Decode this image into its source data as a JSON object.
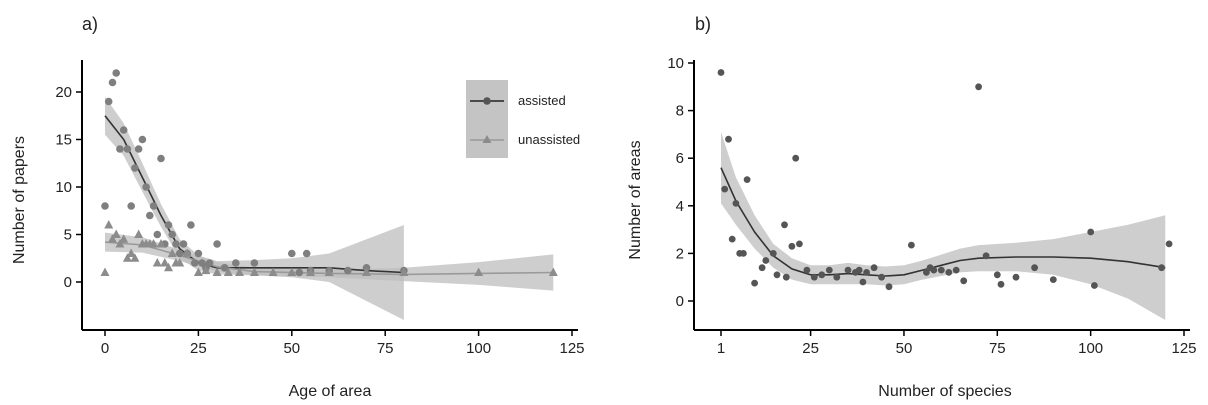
{
  "chart_data": [
    {
      "type": "scatter",
      "panel_label": "a)",
      "xlabel": "Age of area",
      "ylabel": "Number of papers",
      "xlim": [
        -3,
        125
      ],
      "ylim": [
        -5,
        23
      ],
      "xticks": [
        0,
        25,
        50,
        75,
        100,
        125
      ],
      "yticks": [
        0,
        5,
        10,
        15,
        20
      ],
      "legend_position": "top-right",
      "series": [
        {
          "name": "assisted",
          "marker": "circle",
          "color": "#7f7f7f",
          "points": [
            [
              0,
              8
            ],
            [
              1,
              19
            ],
            [
              2,
              21
            ],
            [
              3,
              22
            ],
            [
              4,
              14
            ],
            [
              5,
              16
            ],
            [
              6,
              14
            ],
            [
              7,
              8
            ],
            [
              8,
              12
            ],
            [
              9,
              14
            ],
            [
              10,
              15
            ],
            [
              11,
              10
            ],
            [
              12,
              7
            ],
            [
              13,
              8
            ],
            [
              14,
              5
            ],
            [
              15,
              13
            ],
            [
              16,
              4
            ],
            [
              17,
              6
            ],
            [
              18,
              5
            ],
            [
              19,
              4
            ],
            [
              20,
              3
            ],
            [
              21,
              4
            ],
            [
              22,
              3
            ],
            [
              23,
              6
            ],
            [
              24,
              2
            ],
            [
              25,
              3
            ],
            [
              26,
              2
            ],
            [
              27,
              1.5
            ],
            [
              28,
              2
            ],
            [
              30,
              4
            ],
            [
              32,
              1.5
            ],
            [
              35,
              2
            ],
            [
              40,
              2
            ],
            [
              50,
              3
            ],
            [
              52,
              1
            ],
            [
              54,
              3
            ],
            [
              55,
              1.2
            ],
            [
              60,
              1.2
            ],
            [
              65,
              1.2
            ],
            [
              70,
              1.5
            ],
            [
              80,
              1.2
            ]
          ],
          "fit": [
            [
              0,
              17.5
            ],
            [
              5,
              15
            ],
            [
              10,
              11
            ],
            [
              15,
              7
            ],
            [
              20,
              3.5
            ],
            [
              25,
              2
            ],
            [
              30,
              1.5
            ],
            [
              40,
              1.5
            ],
            [
              50,
              1.5
            ],
            [
              60,
              1.5
            ],
            [
              70,
              1.2
            ],
            [
              80,
              1
            ]
          ],
          "band": [
            [
              0,
              15.5,
              19.5
            ],
            [
              5,
              13.3,
              16.7
            ],
            [
              10,
              9.5,
              12.5
            ],
            [
              15,
              5.8,
              8.2
            ],
            [
              20,
              2.5,
              4.5
            ],
            [
              25,
              1.2,
              2.8
            ],
            [
              30,
              0.8,
              2.2
            ],
            [
              40,
              0.7,
              2.3
            ],
            [
              50,
              0.5,
              2.5
            ],
            [
              60,
              0,
              3
            ],
            [
              70,
              -2,
              4.5
            ],
            [
              80,
              -4,
              6
            ]
          ]
        },
        {
          "name": "unassisted",
          "marker": "triangle",
          "color": "#8c8c8c",
          "points": [
            [
              0,
              1
            ],
            [
              1,
              6
            ],
            [
              2,
              4.5
            ],
            [
              3,
              5
            ],
            [
              4,
              4
            ],
            [
              5,
              4.5
            ],
            [
              6,
              2.5
            ],
            [
              7,
              3
            ],
            [
              8,
              2.5
            ],
            [
              9,
              5
            ],
            [
              10,
              4
            ],
            [
              11,
              4
            ],
            [
              12,
              4
            ],
            [
              13,
              4
            ],
            [
              14,
              2
            ],
            [
              15,
              4
            ],
            [
              16,
              2
            ],
            [
              17,
              1.5
            ],
            [
              18,
              3
            ],
            [
              19,
              2
            ],
            [
              20,
              2
            ],
            [
              22,
              3
            ],
            [
              25,
              1
            ],
            [
              27,
              1.2
            ],
            [
              30,
              1
            ],
            [
              33,
              1
            ],
            [
              36,
              1
            ],
            [
              40,
              1
            ],
            [
              45,
              1
            ],
            [
              50,
              1
            ],
            [
              55,
              1
            ],
            [
              60,
              1
            ],
            [
              70,
              1
            ],
            [
              80,
              1
            ],
            [
              100,
              1
            ],
            [
              120,
              1
            ]
          ],
          "fit": [
            [
              0,
              4.2
            ],
            [
              10,
              3.9
            ],
            [
              20,
              2.8
            ],
            [
              30,
              1.6
            ],
            [
              40,
              1.1
            ],
            [
              60,
              0.9
            ],
            [
              80,
              0.8
            ],
            [
              100,
              0.9
            ],
            [
              120,
              1
            ]
          ],
          "band": [
            [
              0,
              3.2,
              5.2
            ],
            [
              10,
              3.1,
              4.7
            ],
            [
              20,
              2.2,
              3.4
            ],
            [
              30,
              1.1,
              2.1
            ],
            [
              40,
              0.7,
              1.5
            ],
            [
              60,
              0.5,
              1.3
            ],
            [
              80,
              0.1,
              1.5
            ],
            [
              100,
              -0.3,
              2.1
            ],
            [
              120,
              -0.9,
              2.9
            ]
          ]
        }
      ]
    },
    {
      "type": "scatter",
      "panel_label": "b)",
      "xlabel": "Number of species",
      "ylabel": "Number of areas",
      "xlim": [
        -3,
        125
      ],
      "ylim": [
        -1.3,
        10
      ],
      "xticks": [
        1,
        25,
        50,
        75,
        100,
        125
      ],
      "yticks": [
        0,
        2,
        4,
        6,
        8,
        10
      ],
      "series": [
        {
          "name": "",
          "marker": "circle",
          "color": "#555555",
          "points": [
            [
              1,
              9.6
            ],
            [
              2,
              4.7
            ],
            [
              3,
              6.8
            ],
            [
              4,
              2.6
            ],
            [
              5,
              4.1
            ],
            [
              6,
              2
            ],
            [
              7,
              2
            ],
            [
              8,
              5.1
            ],
            [
              10,
              0.75
            ],
            [
              12,
              1.4
            ],
            [
              13,
              1.7
            ],
            [
              15,
              2
            ],
            [
              16,
              1.1
            ],
            [
              18,
              3.2
            ],
            [
              18.5,
              1
            ],
            [
              20,
              2.3
            ],
            [
              21,
              6
            ],
            [
              22,
              2.4
            ],
            [
              24,
              1.3
            ],
            [
              26,
              1
            ],
            [
              28,
              1.1
            ],
            [
              30,
              1.3
            ],
            [
              32,
              1
            ],
            [
              35,
              1.3
            ],
            [
              37,
              1.2
            ],
            [
              38,
              1.3
            ],
            [
              39,
              0.8
            ],
            [
              40,
              1.2
            ],
            [
              42,
              1.4
            ],
            [
              44,
              1
            ],
            [
              46,
              0.6
            ],
            [
              52,
              2.35
            ],
            [
              56,
              1.2
            ],
            [
              57,
              1.4
            ],
            [
              58,
              1.3
            ],
            [
              60,
              1.3
            ],
            [
              62,
              1.2
            ],
            [
              64,
              1.3
            ],
            [
              66,
              0.85
            ],
            [
              70,
              9
            ],
            [
              72,
              1.9
            ],
            [
              75,
              1.1
            ],
            [
              76,
              0.7
            ],
            [
              80,
              1
            ],
            [
              85,
              1.4
            ],
            [
              90,
              0.9
            ],
            [
              100,
              2.9
            ],
            [
              101,
              0.65
            ],
            [
              119,
              1.4
            ],
            [
              121,
              2.4
            ]
          ],
          "fit": [
            [
              1,
              5.6
            ],
            [
              5,
              4.2
            ],
            [
              10,
              2.9
            ],
            [
              15,
              1.9
            ],
            [
              20,
              1.35
            ],
            [
              25,
              1.1
            ],
            [
              30,
              1.1
            ],
            [
              35,
              1.15
            ],
            [
              40,
              1.1
            ],
            [
              45,
              1.05
            ],
            [
              50,
              1.1
            ],
            [
              55,
              1.3
            ],
            [
              60,
              1.5
            ],
            [
              65,
              1.7
            ],
            [
              70,
              1.8
            ],
            [
              80,
              1.85
            ],
            [
              90,
              1.85
            ],
            [
              100,
              1.8
            ],
            [
              110,
              1.65
            ],
            [
              120,
              1.4
            ]
          ],
          "band": [
            [
              1,
              4.1,
              7.1
            ],
            [
              5,
              3.2,
              5.2
            ],
            [
              10,
              2.2,
              3.6
            ],
            [
              15,
              1.4,
              2.4
            ],
            [
              20,
              0.9,
              1.8
            ],
            [
              25,
              0.7,
              1.5
            ],
            [
              30,
              0.7,
              1.5
            ],
            [
              35,
              0.7,
              1.6
            ],
            [
              40,
              0.7,
              1.5
            ],
            [
              45,
              0.65,
              1.45
            ],
            [
              50,
              0.7,
              1.5
            ],
            [
              55,
              0.9,
              1.7
            ],
            [
              60,
              1.05,
              1.95
            ],
            [
              65,
              1.2,
              2.2
            ],
            [
              70,
              1.25,
              2.35
            ],
            [
              80,
              1.25,
              2.45
            ],
            [
              90,
              1.1,
              2.6
            ],
            [
              100,
              0.7,
              2.9
            ],
            [
              110,
              0.1,
              3.2
            ],
            [
              120,
              -0.8,
              3.6
            ]
          ]
        }
      ]
    }
  ]
}
